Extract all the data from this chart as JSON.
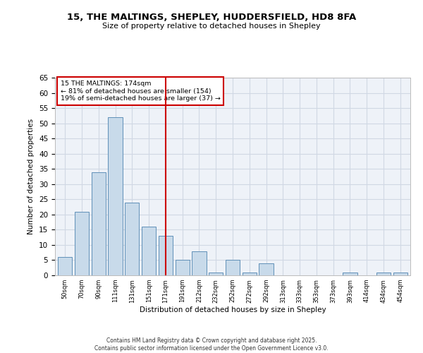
{
  "title_line1": "15, THE MALTINGS, SHEPLEY, HUDDERSFIELD, HD8 8FA",
  "title_line2": "Size of property relative to detached houses in Shepley",
  "xlabel": "Distribution of detached houses by size in Shepley",
  "ylabel": "Number of detached properties",
  "bar_categories": [
    "50sqm",
    "70sqm",
    "90sqm",
    "111sqm",
    "131sqm",
    "151sqm",
    "171sqm",
    "191sqm",
    "212sqm",
    "232sqm",
    "252sqm",
    "272sqm",
    "292sqm",
    "313sqm",
    "333sqm",
    "353sqm",
    "373sqm",
    "393sqm",
    "414sqm",
    "434sqm",
    "454sqm"
  ],
  "bar_values": [
    6,
    21,
    34,
    52,
    24,
    16,
    13,
    5,
    8,
    1,
    5,
    1,
    4,
    0,
    0,
    0,
    0,
    1,
    0,
    1,
    1
  ],
  "bar_color": "#c8daea",
  "bar_edge_color": "#6090b8",
  "grid_color": "#d0d8e4",
  "background_color": "#eef2f8",
  "vline_x": 6,
  "vline_color": "#cc0000",
  "annotation_title": "15 THE MALTINGS: 174sqm",
  "annotation_line1": "← 81% of detached houses are smaller (154)",
  "annotation_line2": "19% of semi-detached houses are larger (37) →",
  "annotation_box_color": "#cc0000",
  "ylim": [
    0,
    65
  ],
  "yticks": [
    0,
    5,
    10,
    15,
    20,
    25,
    30,
    35,
    40,
    45,
    50,
    55,
    60,
    65
  ],
  "footer_line1": "Contains HM Land Registry data © Crown copyright and database right 2025.",
  "footer_line2": "Contains public sector information licensed under the Open Government Licence v3.0."
}
